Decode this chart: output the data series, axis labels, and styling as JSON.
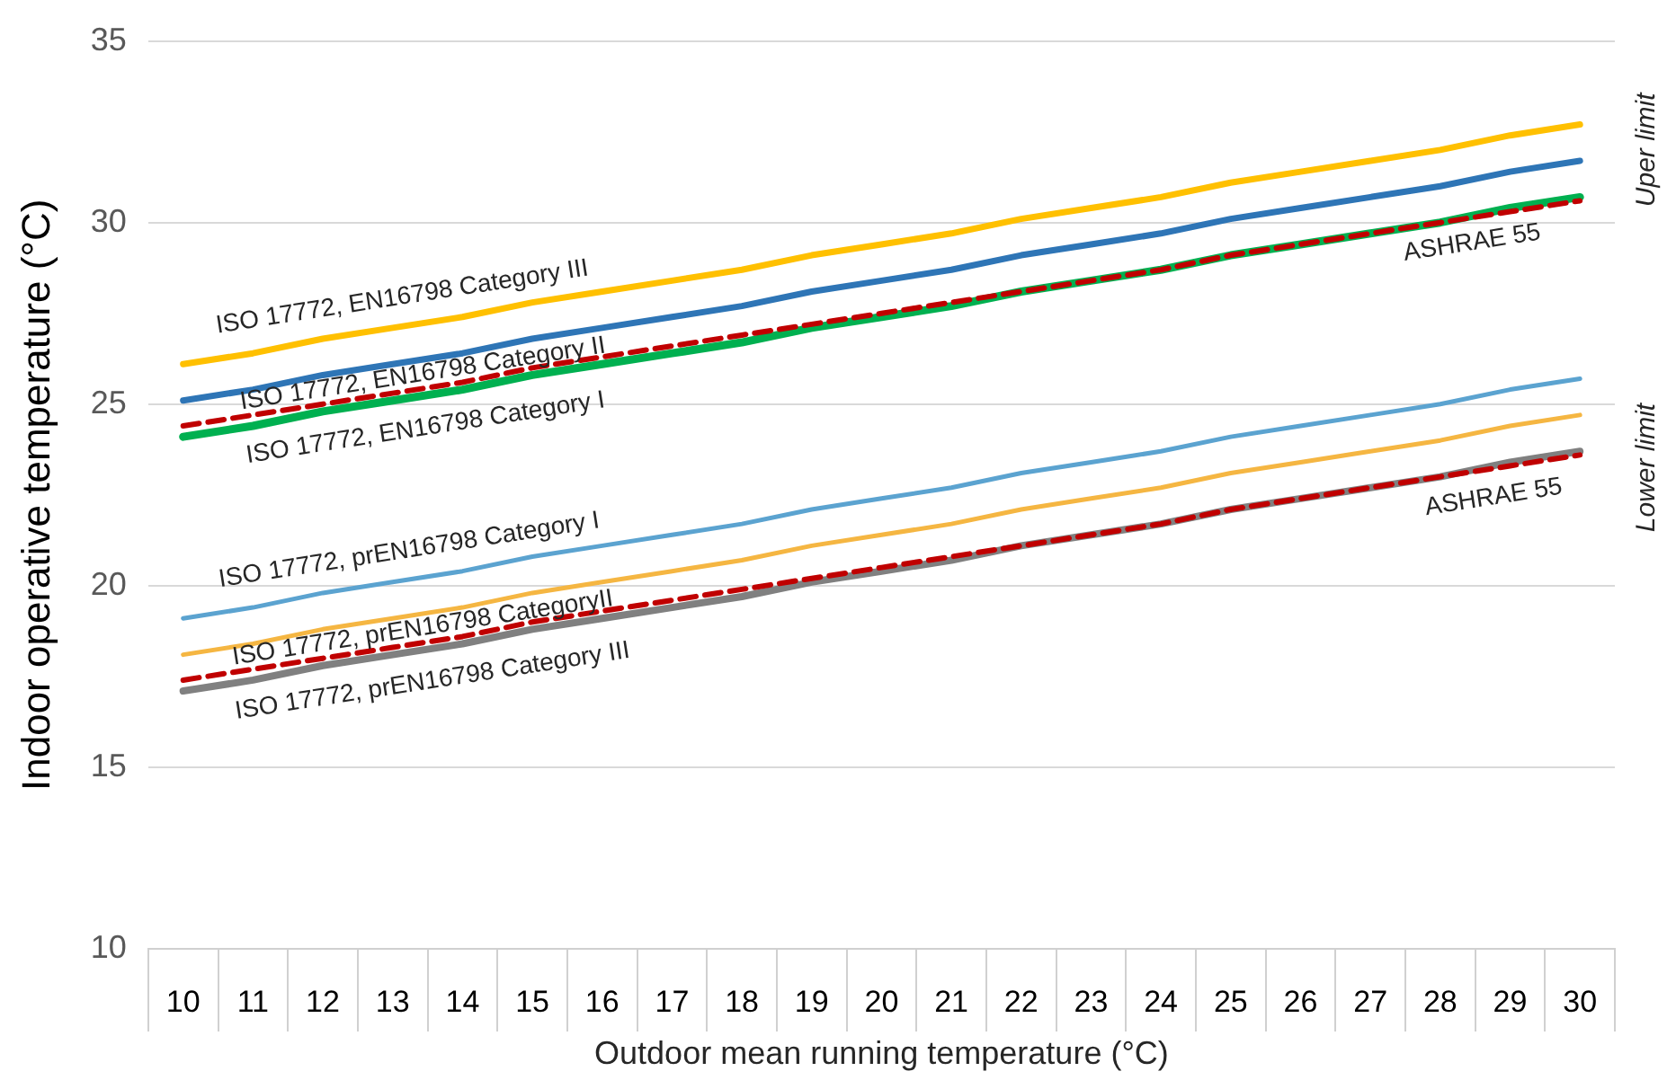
{
  "chart_data": {
    "type": "line",
    "ylabel": "Indoor operative temperature (°C)",
    "xlabel": "Outdoor mean running temperature (°C)",
    "categories": [
      "10",
      "11",
      "12",
      "13",
      "14",
      "15",
      "16",
      "17",
      "18",
      "19",
      "20",
      "21",
      "22",
      "23",
      "24",
      "25",
      "26",
      "27",
      "28",
      "29",
      "30"
    ],
    "ylim": [
      10,
      35
    ],
    "yticks": [
      10,
      15,
      20,
      25,
      30,
      35
    ],
    "grid": "y",
    "legend": false,
    "marker": "none",
    "series": [
      {
        "name": "ASHRAE 55",
        "color": "#c00000",
        "line_style": "dashed",
        "values": [
          24.4,
          24.7,
          25.0,
          25.3,
          25.6,
          26.0,
          26.3,
          26.6,
          26.9,
          27.2,
          27.5,
          27.8,
          28.1,
          28.4,
          28.7,
          29.1,
          29.4,
          29.7,
          30.0,
          30.3,
          30.6
        ]
      },
      {
        "name": "ASHRAE 55",
        "color": "#c00000",
        "line_style": "dashed",
        "values": [
          17.4,
          17.7,
          18.0,
          18.3,
          18.6,
          19.0,
          19.3,
          19.6,
          19.9,
          20.2,
          20.5,
          20.8,
          21.1,
          21.4,
          21.7,
          22.1,
          22.4,
          22.7,
          23.0,
          23.3,
          23.6
        ]
      },
      {
        "name": "ISO 17772, EN16798 Category III",
        "color": "#ffc000",
        "line_style": "solid",
        "values": [
          26.1,
          26.4,
          26.8,
          27.1,
          27.4,
          27.8,
          28.1,
          28.4,
          28.7,
          29.1,
          29.4,
          29.7,
          30.1,
          30.4,
          30.7,
          31.1,
          31.4,
          31.7,
          32.0,
          32.4,
          32.7
        ]
      },
      {
        "name": "ISO 17772, EN16798 Category II",
        "color": "#2e75b6",
        "line_style": "solid",
        "values": [
          25.1,
          25.4,
          25.8,
          26.1,
          26.4,
          26.8,
          27.1,
          27.4,
          27.7,
          28.1,
          28.4,
          28.7,
          29.1,
          29.4,
          29.7,
          30.1,
          30.4,
          30.7,
          31.0,
          31.4,
          31.7
        ]
      },
      {
        "name": "ISO 17772, EN16798 Category I",
        "color": "#00b050",
        "line_style": "solid",
        "values": [
          24.1,
          24.4,
          24.8,
          25.1,
          25.4,
          25.8,
          26.1,
          26.4,
          26.7,
          27.1,
          27.4,
          27.7,
          28.1,
          28.4,
          28.7,
          29.1,
          29.4,
          29.7,
          30.0,
          30.4,
          30.7
        ]
      },
      {
        "name": "ISO 17772, prEN16798 Category I",
        "color": "#5ba3d0",
        "line_style": "solid",
        "values": [
          19.1,
          19.4,
          19.8,
          20.1,
          20.4,
          20.8,
          21.1,
          21.4,
          21.7,
          22.1,
          22.4,
          22.7,
          23.1,
          23.4,
          23.7,
          24.1,
          24.4,
          24.7,
          25.0,
          25.4,
          25.7
        ]
      },
      {
        "name": "ISO 17772, prEN16798 CategoryII",
        "color": "#f5b642",
        "line_style": "solid",
        "values": [
          18.1,
          18.4,
          18.8,
          19.1,
          19.4,
          19.8,
          20.1,
          20.4,
          20.7,
          21.1,
          21.4,
          21.7,
          22.1,
          22.4,
          22.7,
          23.1,
          23.4,
          23.7,
          24.0,
          24.4,
          24.7
        ]
      },
      {
        "name": "ISO 17772, prEN16798 Category III",
        "color": "#808080",
        "line_style": "solid",
        "values": [
          17.1,
          17.4,
          17.8,
          18.1,
          18.4,
          18.8,
          19.1,
          19.4,
          19.7,
          20.1,
          20.4,
          20.7,
          21.1,
          21.4,
          21.7,
          22.1,
          22.4,
          22.7,
          23.0,
          23.4,
          23.7
        ]
      }
    ],
    "annotations": [
      "Uper limit",
      "Lower limit"
    ]
  }
}
